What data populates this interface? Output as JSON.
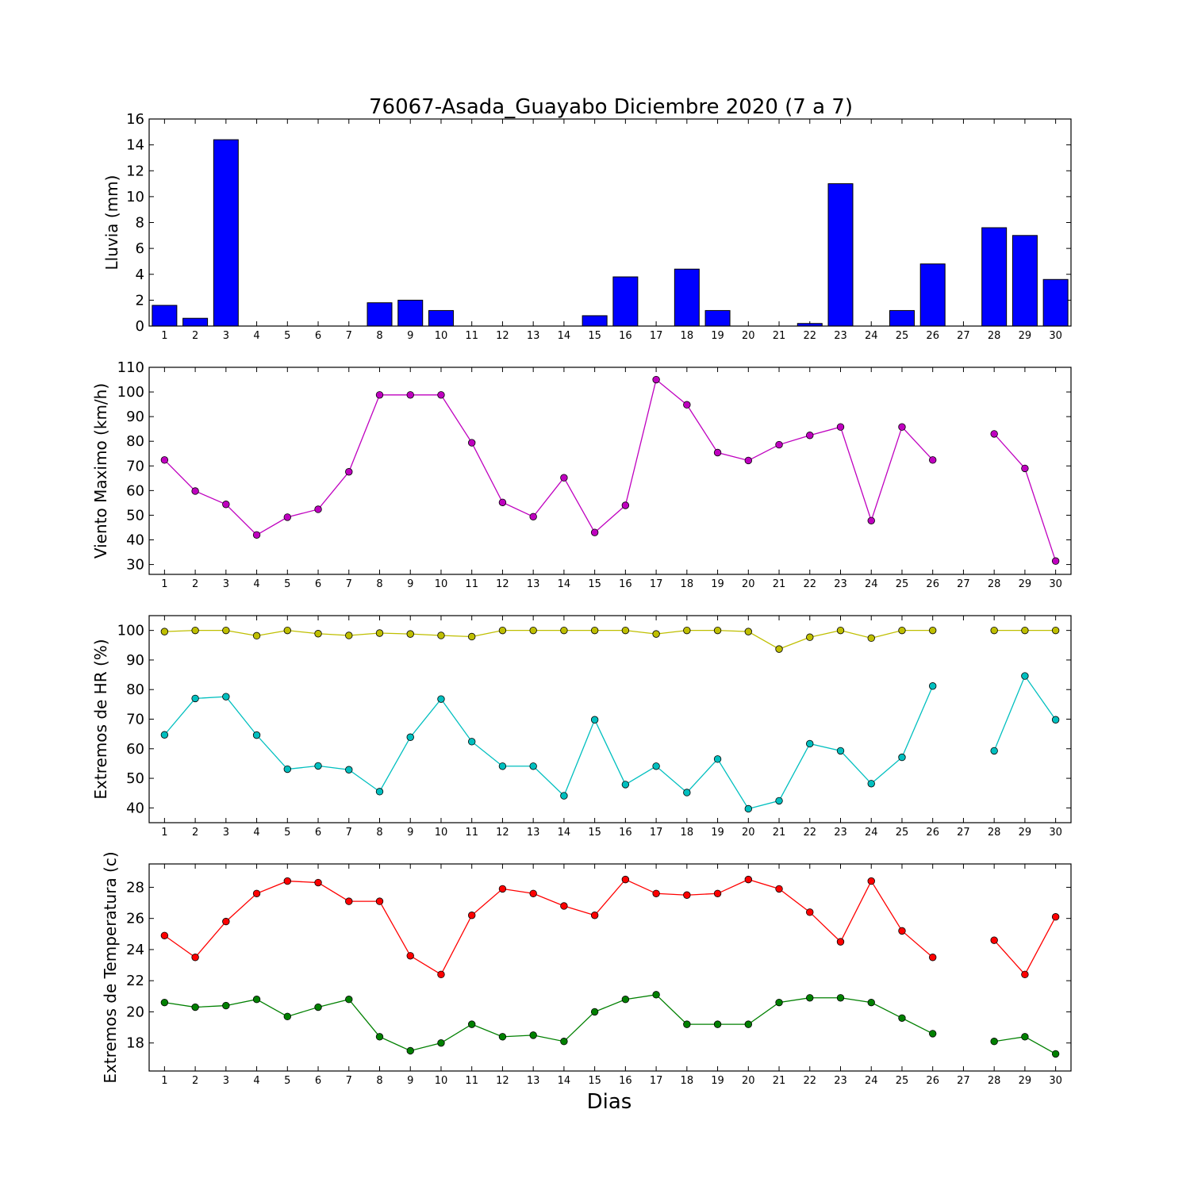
{
  "chart_data": {
    "title": "76067-Asada_Guayabo Diciembre 2020  (7 a 7)",
    "xlabel": "Dias",
    "x_tick_labels": [
      "1",
      "2",
      "3",
      "4",
      "5",
      "6",
      "7",
      "8",
      "9",
      "10",
      "11",
      "12",
      "13",
      "14",
      "15",
      "16",
      "17",
      "18",
      "19",
      "20",
      "21",
      "22",
      "23",
      "24",
      "25",
      "26",
      "27",
      "28",
      "29",
      "30"
    ],
    "panels": [
      {
        "id": "lluvia",
        "type": "bar",
        "ylabel": "Lluvia (mm)",
        "ylim": [
          0,
          16
        ],
        "yticks": [
          0,
          2,
          4,
          6,
          8,
          10,
          12,
          14,
          16
        ],
        "series": [
          {
            "color": "#0000ff",
            "values": [
              1.6,
              0.6,
              14.4,
              0,
              0,
              0,
              0,
              1.8,
              2.0,
              1.2,
              0,
              0,
              0,
              0,
              0.8,
              3.8,
              0,
              4.4,
              1.2,
              0,
              0,
              0.2,
              11.0,
              0,
              1.2,
              4.8,
              null,
              7.6,
              7.0,
              3.6
            ]
          }
        ]
      },
      {
        "id": "viento",
        "type": "line",
        "ylabel": "Viento Maximo (km/h)",
        "ylim": [
          26,
          110
        ],
        "yticks": [
          30,
          40,
          50,
          60,
          70,
          80,
          90,
          100,
          110
        ],
        "series": [
          {
            "color": "#bf00bf",
            "values": [
              72.4,
              59.8,
              54.4,
              42.0,
              49.2,
              52.4,
              67.6,
              98.8,
              98.8,
              98.8,
              79.4,
              55.2,
              49.4,
              65.2,
              43.0,
              54.0,
              105.0,
              94.8,
              75.4,
              72.2,
              78.6,
              82.4,
              85.8,
              47.8,
              85.8,
              72.4,
              null,
              83.0,
              69.0,
              31.4
            ]
          }
        ]
      },
      {
        "id": "hr",
        "type": "line",
        "ylabel": "Extremos de HR (%)",
        "ylim": [
          35,
          105
        ],
        "yticks": [
          40,
          50,
          60,
          70,
          80,
          90,
          100
        ],
        "series": [
          {
            "color": "#bfbf00",
            "values": [
              99.6,
              100,
              100,
              98.2,
              100,
              98.9,
              98.3,
              99.1,
              98.8,
              98.3,
              97.9,
              100,
              100,
              100,
              100,
              100,
              98.8,
              100,
              100,
              99.6,
              93.7,
              97.7,
              100,
              97.4,
              100,
              100,
              null,
              100,
              100,
              100
            ]
          },
          {
            "color": "#00bfbf",
            "values": [
              64.7,
              77.0,
              77.6,
              64.6,
              53.1,
              54.2,
              52.9,
              45.5,
              63.9,
              76.8,
              62.4,
              54.1,
              54.1,
              44.1,
              69.8,
              47.9,
              54.1,
              45.2,
              56.5,
              39.7,
              42.4,
              61.7,
              59.3,
              48.2,
              57.1,
              81.2,
              null,
              59.3,
              84.6,
              69.8
            ]
          }
        ]
      },
      {
        "id": "temp",
        "type": "line",
        "ylabel": "Extremos de Temperatura (c)",
        "ylim": [
          16.2,
          29.5
        ],
        "yticks": [
          18,
          20,
          22,
          24,
          26,
          28
        ],
        "series": [
          {
            "color": "#ff0000",
            "values": [
              24.9,
              23.5,
              25.8,
              27.6,
              28.4,
              28.3,
              27.1,
              27.1,
              23.6,
              22.4,
              26.2,
              27.9,
              27.6,
              26.8,
              26.2,
              28.5,
              27.6,
              27.5,
              27.6,
              28.5,
              27.9,
              26.4,
              24.5,
              28.4,
              25.2,
              23.5,
              null,
              24.6,
              22.4,
              26.1
            ]
          },
          {
            "color": "#008000",
            "values": [
              20.6,
              20.3,
              20.4,
              20.8,
              19.7,
              20.3,
              20.8,
              18.4,
              17.5,
              18.0,
              19.2,
              18.4,
              18.5,
              18.1,
              20.0,
              20.8,
              21.1,
              19.2,
              19.2,
              19.2,
              20.6,
              20.9,
              20.9,
              20.6,
              19.6,
              18.6,
              null,
              18.1,
              18.4,
              17.3
            ]
          }
        ]
      }
    ]
  }
}
